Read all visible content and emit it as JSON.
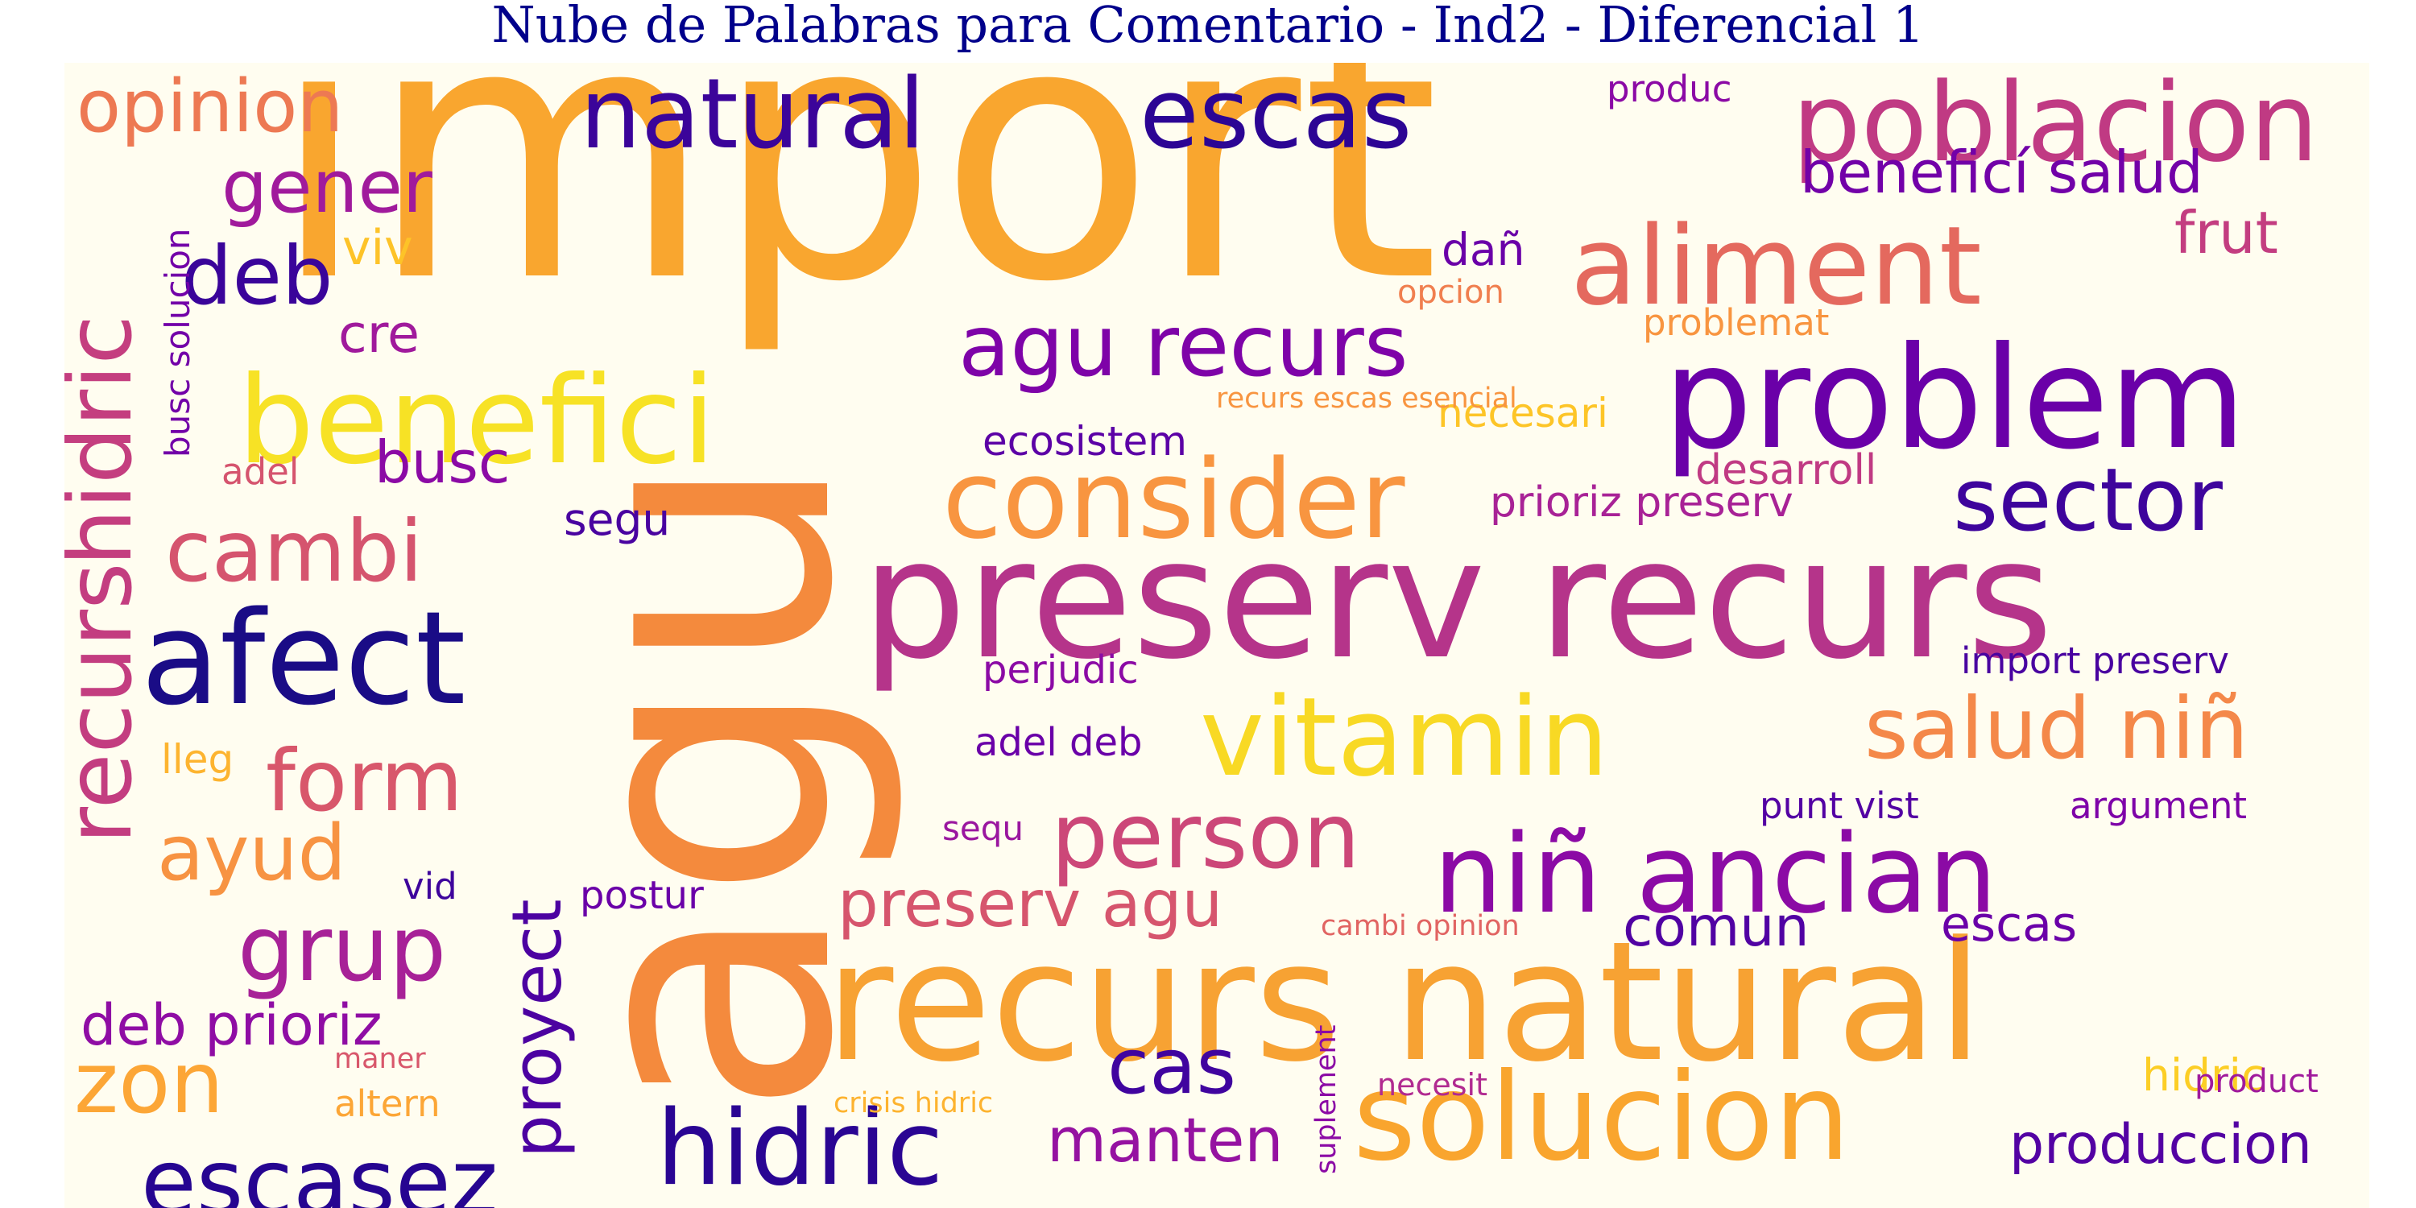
{
  "title": "Nube de Palabras para Comentario - Ind2 - Diferencial 1",
  "colormap": "plasma",
  "background_color": "#fffdf0",
  "title_color": "#00008b",
  "words": [
    {
      "text": "import",
      "color": "#f9a62f"
    },
    {
      "text": "agu",
      "color": "#f48a3d"
    },
    {
      "text": "preserv recurs",
      "color": "#b5348a"
    },
    {
      "text": "recurs natural",
      "color": "#f7a233"
    },
    {
      "text": "problem",
      "color": "#6a00a8"
    },
    {
      "text": "benefici",
      "color": "#f7e225"
    },
    {
      "text": "poblacion",
      "color": "#c03a83"
    },
    {
      "text": "aliment",
      "color": "#e4695e"
    },
    {
      "text": "consider",
      "color": "#f89540"
    },
    {
      "text": "natural",
      "color": "#3b049a"
    },
    {
      "text": "escas",
      "color": "#2c0594"
    },
    {
      "text": "vitamin",
      "color": "#f8d924"
    },
    {
      "text": "niñ ancian",
      "color": "#8b0aa5"
    },
    {
      "text": "afect",
      "color": "#1a0c86"
    },
    {
      "text": "solucion",
      "color": "#f9a52e"
    },
    {
      "text": "hidric",
      "color": "#2a0593"
    },
    {
      "text": "escasez",
      "color": "#260591"
    },
    {
      "text": "person",
      "color": "#cc4778"
    },
    {
      "text": "recurs",
      "color": "#c33d80"
    },
    {
      "text": "hidric",
      "color": "#c43e7f"
    },
    {
      "text": "agu recurs",
      "color": "#7e03a8"
    },
    {
      "text": "sector",
      "color": "#3e049c"
    },
    {
      "text": "salud niñ",
      "color": "#f48849"
    },
    {
      "text": "cambi",
      "color": "#d5546e"
    },
    {
      "text": "form",
      "color": "#d8576b"
    },
    {
      "text": "grup",
      "color": "#a72197"
    },
    {
      "text": "zon",
      "color": "#fca636"
    },
    {
      "text": "proyect",
      "color": "#4c02a1"
    },
    {
      "text": "deb",
      "color": "#3a049a"
    },
    {
      "text": "opinion",
      "color": "#ed7953"
    },
    {
      "text": "gener",
      "color": "#a01a9c"
    },
    {
      "text": "preserv agu",
      "color": "#d6556d"
    },
    {
      "text": "manten",
      "color": "#9512a1"
    },
    {
      "text": "cas",
      "color": "#40049f"
    },
    {
      "text": "produccion",
      "color": "#5302a3"
    },
    {
      "text": "beneficí salud",
      "color": "#7201a8"
    },
    {
      "text": "frut",
      "color": "#c33d80"
    },
    {
      "text": "ayud",
      "color": "#f79342"
    },
    {
      "text": "deb prioriz",
      "color": "#8f0da4"
    },
    {
      "text": "comun",
      "color": "#5102a3"
    },
    {
      "text": "escas",
      "color": "#6a00a8"
    },
    {
      "text": "busc",
      "color": "#8b0aa5"
    },
    {
      "text": "cre",
      "color": "#a01a9c"
    },
    {
      "text": "viv",
      "color": "#fdc328"
    },
    {
      "text": "adel",
      "color": "#d5546e"
    },
    {
      "text": "segu",
      "color": "#4903a0"
    },
    {
      "text": "ecosistem",
      "color": "#5c01a6"
    },
    {
      "text": "prioriz preserv",
      "color": "#a82296"
    },
    {
      "text": "desarroll",
      "color": "#c03a83"
    },
    {
      "text": "problemat",
      "color": "#f89540"
    },
    {
      "text": "necesari",
      "color": "#fdc527"
    },
    {
      "text": "perjudic",
      "color": "#8b0aa5"
    },
    {
      "text": "adel deb",
      "color": "#6a00a8"
    },
    {
      "text": "import preserv",
      "color": "#4903a0"
    },
    {
      "text": "punt vist",
      "color": "#5302a3"
    },
    {
      "text": "argument",
      "color": "#7e03a8"
    },
    {
      "text": "lleg",
      "color": "#fdb42f"
    },
    {
      "text": "produc",
      "color": "#8b0aa5"
    },
    {
      "text": "postur",
      "color": "#6a00a8"
    },
    {
      "text": "vid",
      "color": "#3e049c"
    },
    {
      "text": "sequ",
      "color": "#9a169f"
    },
    {
      "text": "altern",
      "color": "#fca636"
    },
    {
      "text": "maner",
      "color": "#d8576b"
    },
    {
      "text": "dañ",
      "color": "#6a00a8"
    },
    {
      "text": "opcion",
      "color": "#f07f4f"
    },
    {
      "text": "busc solucion",
      "color": "#7201a8"
    },
    {
      "text": "hidric",
      "color": "#fcce25"
    },
    {
      "text": "recurs escas esencial",
      "color": "#f89540"
    },
    {
      "text": "cambi opinion",
      "color": "#e16462"
    },
    {
      "text": "crisis hidric",
      "color": "#fdb32f"
    },
    {
      "text": "necesit",
      "color": "#b12a90"
    },
    {
      "text": "product",
      "color": "#a01a9c"
    },
    {
      "text": "suplement",
      "color": "#8b0aa5"
    }
  ]
}
